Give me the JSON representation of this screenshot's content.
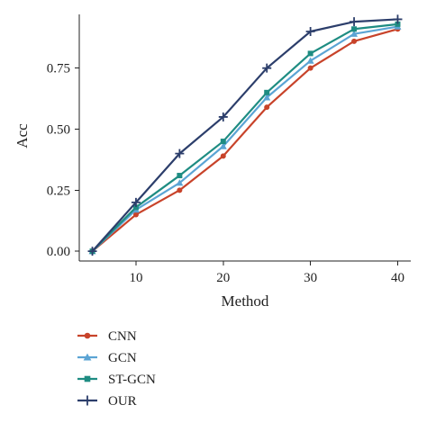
{
  "chart_data": {
    "type": "line",
    "xlabel": "Method",
    "ylabel": "Acc",
    "xlim": [
      3.5,
      41.5
    ],
    "ylim": [
      -0.04,
      0.97
    ],
    "x_ticks": [
      10,
      20,
      30,
      40
    ],
    "x_tick_labels": [
      "10",
      "20",
      "30",
      "40"
    ],
    "y_ticks": [
      0.0,
      0.25,
      0.5,
      0.75
    ],
    "y_tick_labels": [
      "0.00",
      "0.25",
      "0.50",
      "0.75"
    ],
    "grid": false,
    "legend_position": "bottom-left",
    "x": [
      5,
      10,
      15,
      20,
      25,
      30,
      35,
      40
    ],
    "series": [
      {
        "name": "CNN",
        "color": "#c8432a",
        "marker": "circle",
        "values": [
          0.0,
          0.15,
          0.25,
          0.39,
          0.59,
          0.75,
          0.86,
          0.91
        ]
      },
      {
        "name": "GCN",
        "color": "#5ba4d4",
        "marker": "triangle",
        "values": [
          0.0,
          0.17,
          0.28,
          0.43,
          0.63,
          0.78,
          0.89,
          0.92
        ]
      },
      {
        "name": "ST-GCN",
        "color": "#1e8c82",
        "marker": "square",
        "values": [
          0.0,
          0.18,
          0.31,
          0.45,
          0.65,
          0.81,
          0.91,
          0.93
        ]
      },
      {
        "name": "OUR",
        "color": "#2c3e6b",
        "marker": "plus",
        "values": [
          0.0,
          0.2,
          0.4,
          0.55,
          0.75,
          0.9,
          0.94,
          0.95
        ]
      }
    ]
  }
}
